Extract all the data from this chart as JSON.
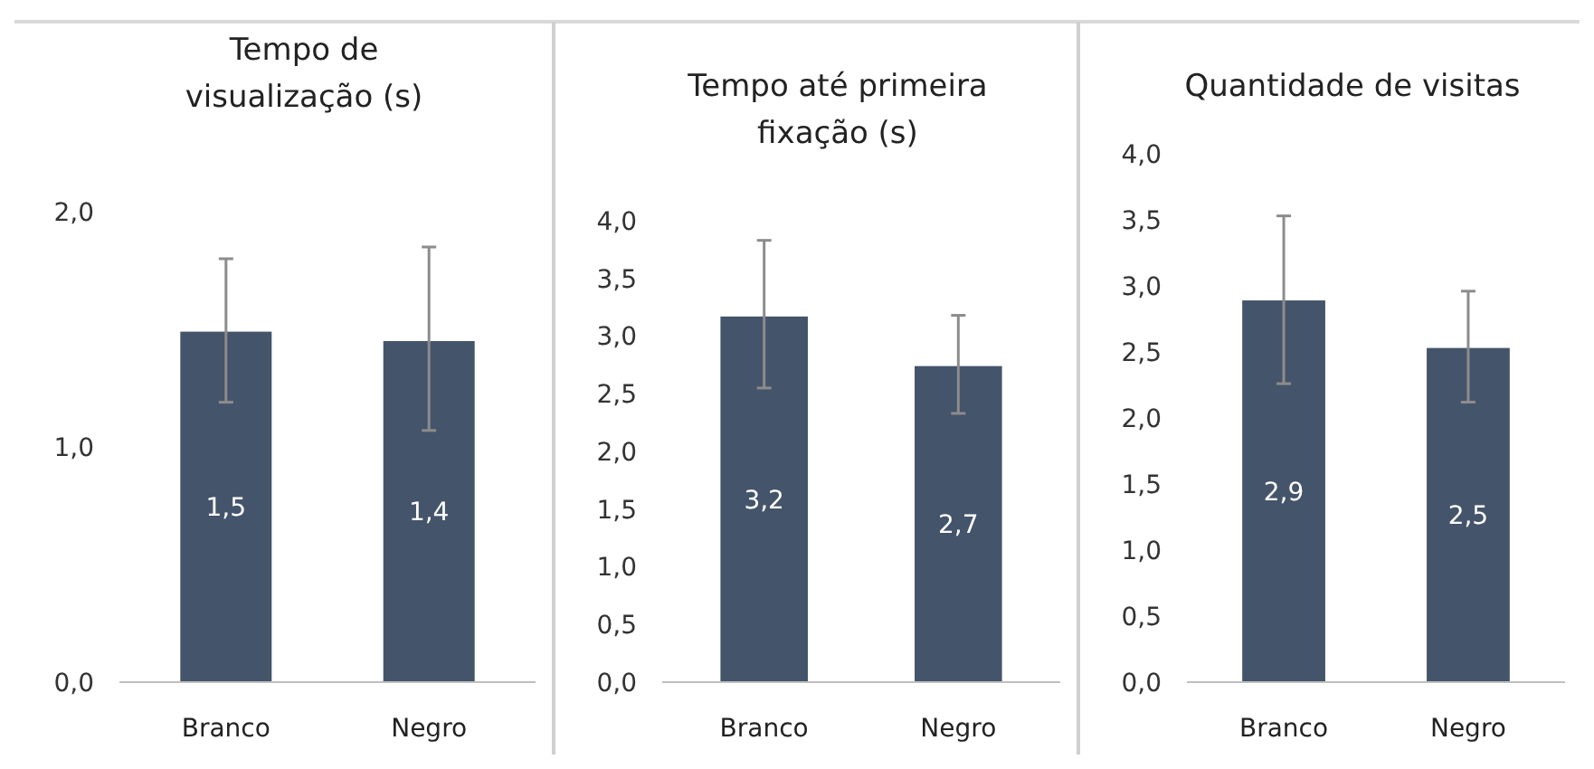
{
  "chart_data": [
    {
      "type": "bar",
      "title": "Tempo de\nvisualização (s)",
      "categories": [
        "Branco",
        "Negro"
      ],
      "values": [
        1.49,
        1.45
      ],
      "color": "#44546a",
      "errors": [
        [
          1.19,
          1.8
        ],
        [
          1.07,
          1.85
        ]
      ],
      "value_labels": [
        "1,5",
        "1,4"
      ],
      "ylim": [
        0,
        2
      ],
      "yticks": [
        {
          "value": 0,
          "label": "0,0"
        },
        {
          "value": 1,
          "label": "1,0"
        },
        {
          "value": 2,
          "label": "2,0"
        }
      ]
    },
    {
      "type": "bar",
      "title": "Tempo até primeira\nfixação (s)",
      "categories": [
        "Branco",
        "Negro"
      ],
      "values": [
        3.17,
        2.74
      ],
      "color": "#44546a",
      "errors": [
        [
          2.55,
          3.83
        ],
        [
          2.33,
          3.18
        ]
      ],
      "value_labels": [
        "3,2",
        "2,7"
      ],
      "ylim": [
        0,
        4
      ],
      "yticks": [
        {
          "value": 0,
          "label": "0,0"
        },
        {
          "value": 0.5,
          "label": "0,5"
        },
        {
          "value": 1,
          "label": "1,0"
        },
        {
          "value": 1.5,
          "label": "1,5"
        },
        {
          "value": 2,
          "label": "2,0"
        },
        {
          "value": 2.5,
          "label": "2,5"
        },
        {
          "value": 3,
          "label": "3,0"
        },
        {
          "value": 3.5,
          "label": "3,5"
        },
        {
          "value": 4,
          "label": "4,0"
        }
      ]
    },
    {
      "type": "bar",
      "title": "Quantidade de visitas",
      "categories": [
        "Branco",
        "Negro"
      ],
      "values": [
        2.89,
        2.53
      ],
      "color": "#44546a",
      "errors": [
        [
          2.26,
          3.53
        ],
        [
          2.12,
          2.96
        ]
      ],
      "value_labels": [
        "2,9",
        "2,5"
      ],
      "ylim": [
        0,
        4
      ],
      "yticks": [
        {
          "value": 0,
          "label": "0,0"
        },
        {
          "value": 0.5,
          "label": "0,5"
        },
        {
          "value": 1,
          "label": "1,0"
        },
        {
          "value": 1.5,
          "label": "1,5"
        },
        {
          "value": 2,
          "label": "2,0"
        },
        {
          "value": 2.5,
          "label": "2,5"
        },
        {
          "value": 3,
          "label": "3,0"
        },
        {
          "value": 3.5,
          "label": "3,5"
        },
        {
          "value": 4,
          "label": "4,0"
        }
      ]
    }
  ]
}
